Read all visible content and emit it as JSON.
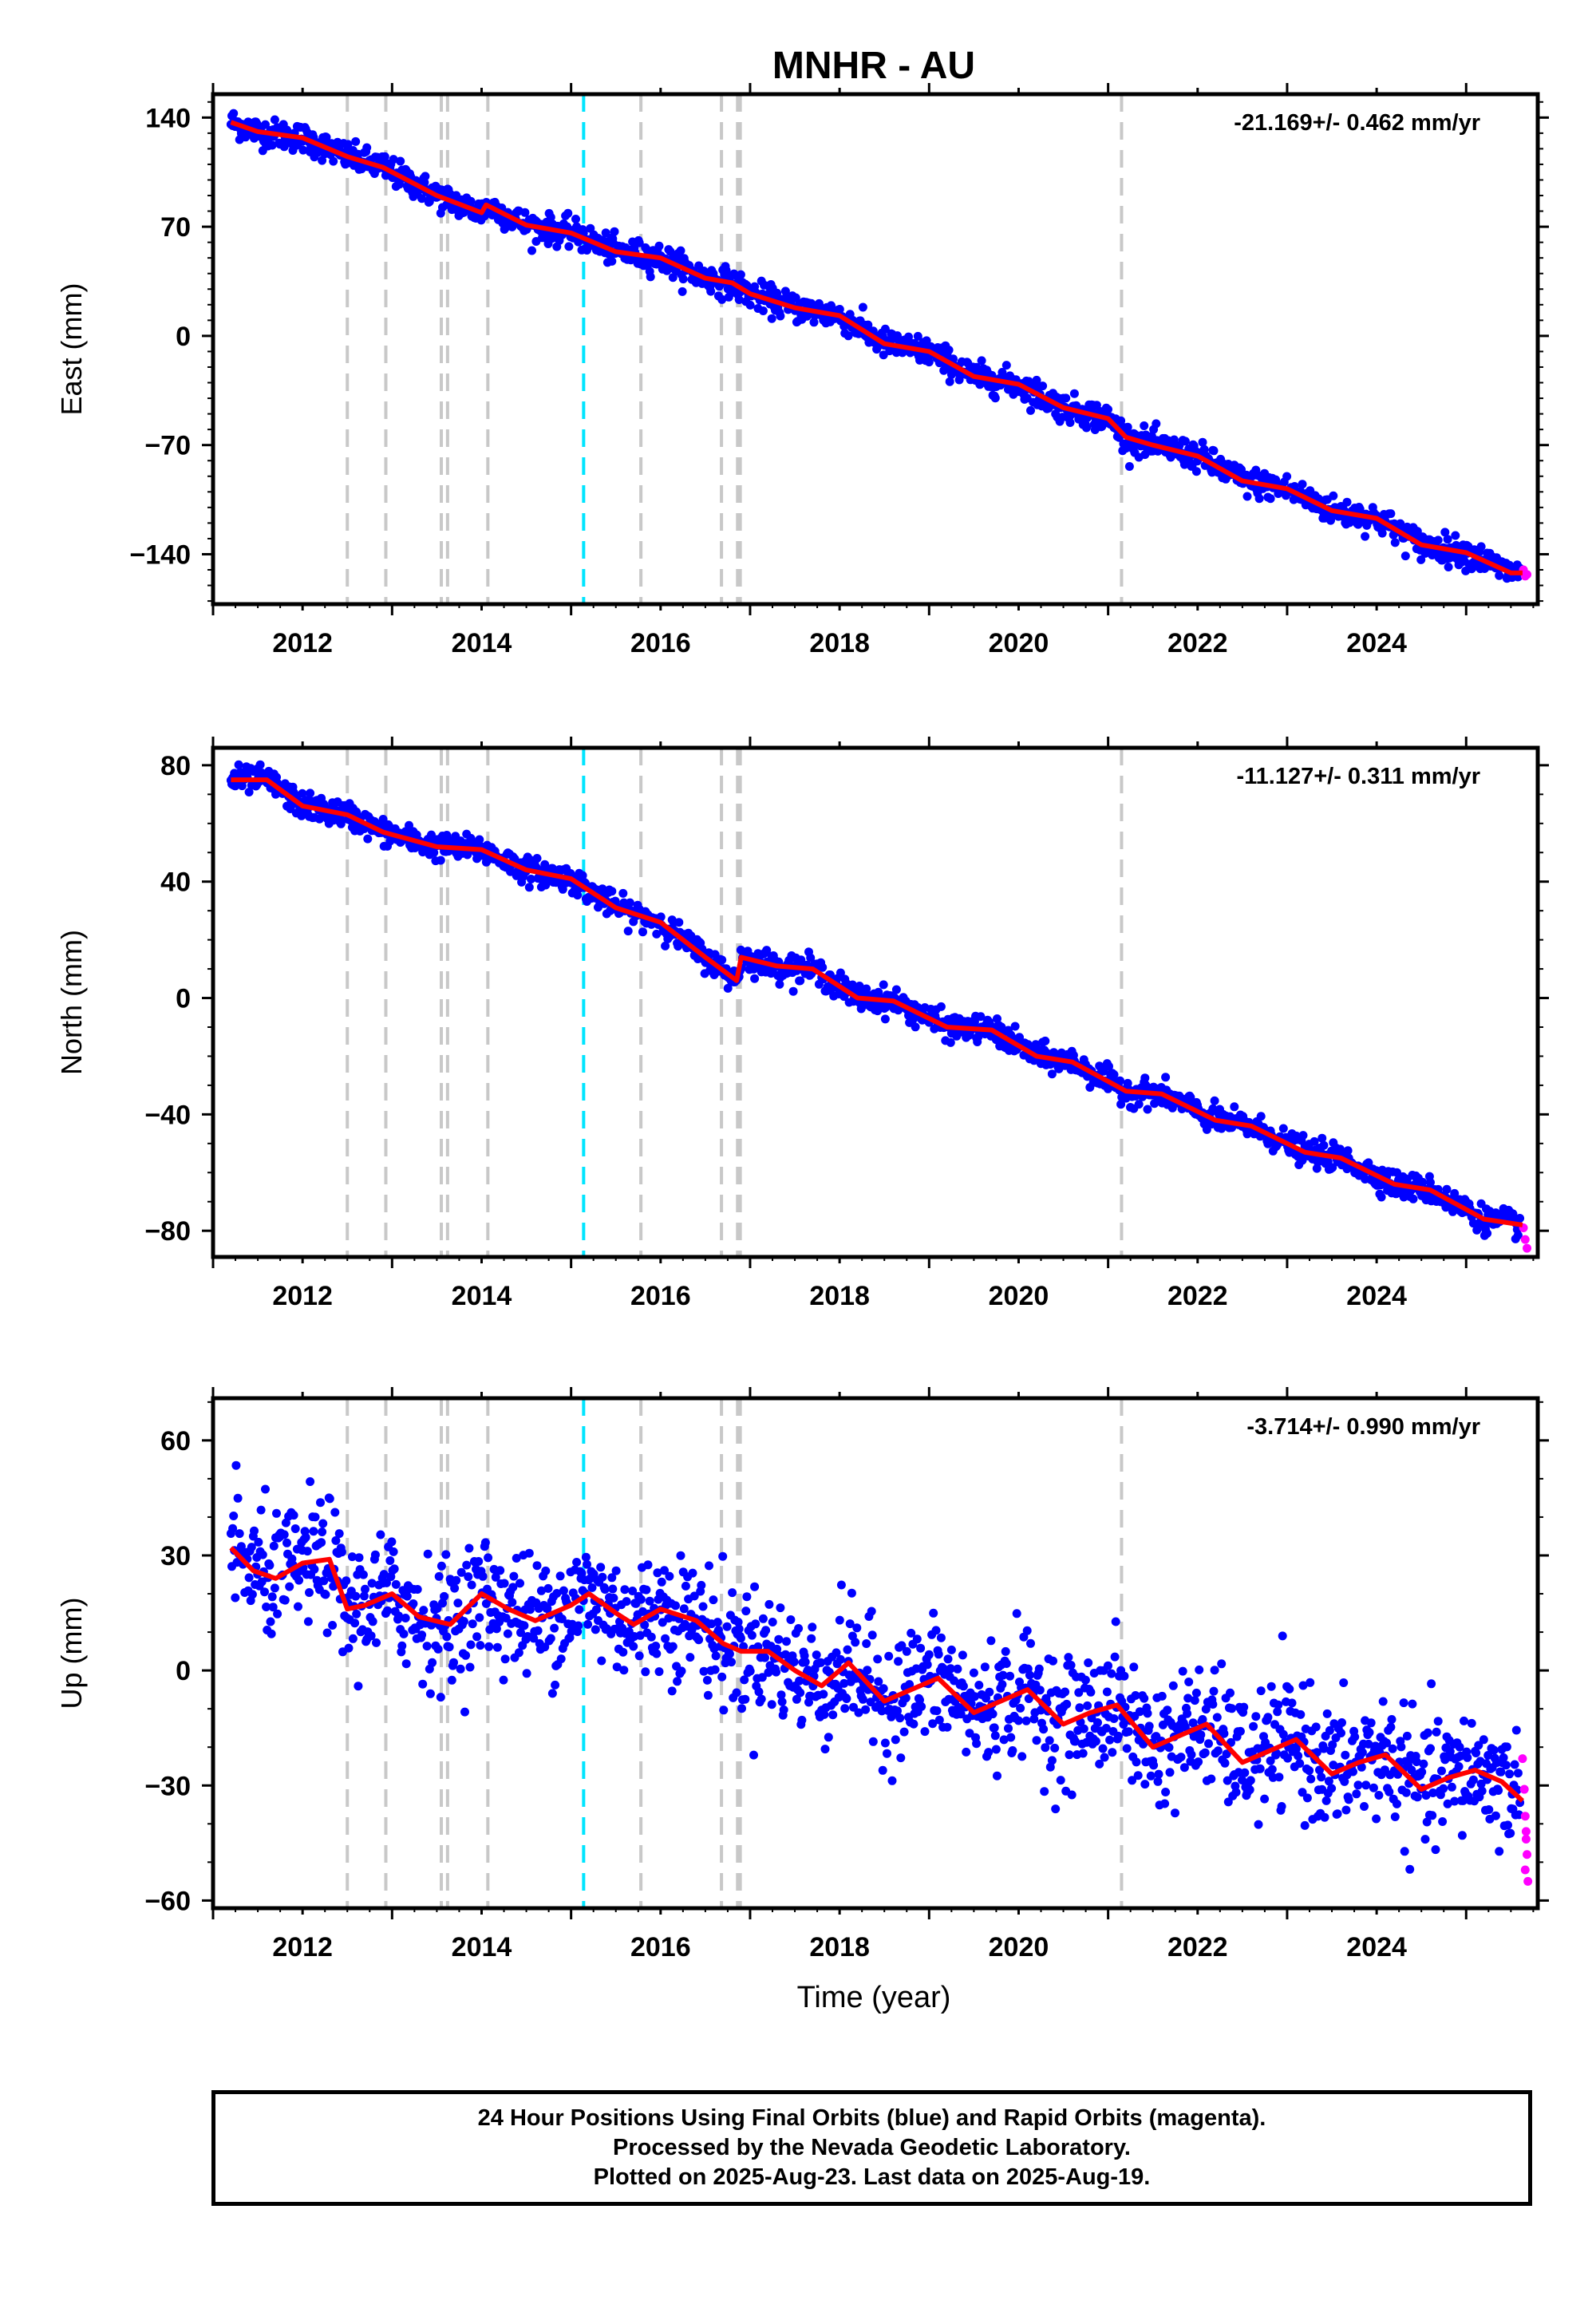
{
  "title": "MNHR - AU",
  "xlabel": "Time (year)",
  "colors": {
    "final_orbits": "#0000ff",
    "rapid_orbits": "#ff00ff",
    "model": "#ff0000",
    "equipment_change": "#c8c8c8",
    "earthquake_marker": "#00e5ff"
  },
  "chart_data": [
    {
      "type": "scatter",
      "ylabel": "East (mm)",
      "rate": "-21.169+/- 0.462 mm/yr",
      "xlim": [
        2011.0,
        2025.8
      ],
      "ylim": [
        -172,
        155
      ],
      "xticks": [
        2012,
        2014,
        2016,
        2018,
        2020,
        2022,
        2024
      ],
      "yticks": [
        140,
        70,
        0,
        -70,
        -140
      ],
      "grid": false,
      "series": [
        {
          "role": "model",
          "x": [
            2011.2,
            2011.5,
            2012.0,
            2012.5,
            2012.9,
            2013.5,
            2014.0,
            2014.05,
            2014.5,
            2015.0,
            2015.5,
            2016.0,
            2016.5,
            2016.8,
            2017.0,
            2017.5,
            2018.0,
            2018.5,
            2019.0,
            2019.5,
            2020.0,
            2020.5,
            2021.0,
            2021.2,
            2021.5,
            2022.0,
            2022.5,
            2023.0,
            2023.5,
            2024.0,
            2024.5,
            2025.0,
            2025.5,
            2025.63
          ],
          "y": [
            137,
            131,
            127,
            115,
            108,
            90,
            79,
            84,
            71,
            66,
            54,
            50,
            37,
            34,
            27,
            18,
            13,
            -5,
            -10,
            -26,
            -31,
            -46,
            -53,
            -65,
            -70,
            -77,
            -93,
            -98,
            -112,
            -117,
            -134,
            -139,
            -152,
            -152
          ]
        },
        {
          "role": "final_orbits",
          "trend": [
            [
              2011.2,
              137
            ],
            [
              2025.6,
              -152
            ]
          ],
          "scatter_sd": 4.5
        },
        {
          "role": "rapid_orbits",
          "x": [
            2025.64,
            2025.66,
            2025.68
          ],
          "y": [
            -150,
            -154,
            -153
          ]
        }
      ]
    },
    {
      "type": "scatter",
      "ylabel": "North (mm)",
      "rate": "-11.127+/- 0.311 mm/yr",
      "xlim": [
        2011.0,
        2025.8
      ],
      "ylim": [
        -89,
        86
      ],
      "xticks": [
        2012,
        2014,
        2016,
        2018,
        2020,
        2022,
        2024
      ],
      "yticks": [
        80,
        40,
        0,
        -40,
        -80
      ],
      "grid": false,
      "series": [
        {
          "role": "model",
          "x": [
            2011.2,
            2011.6,
            2012.0,
            2012.5,
            2012.9,
            2013.5,
            2014.0,
            2014.5,
            2015.0,
            2015.5,
            2016.0,
            2016.5,
            2016.85,
            2016.9,
            2017.3,
            2017.7,
            2018.2,
            2018.6,
            2019.2,
            2019.7,
            2020.2,
            2020.6,
            2021.2,
            2021.6,
            2022.2,
            2022.6,
            2023.2,
            2023.6,
            2024.2,
            2024.6,
            2025.2,
            2025.63
          ],
          "y": [
            75,
            75,
            66,
            63,
            57,
            52,
            51,
            44,
            41,
            31,
            26,
            14,
            6,
            14,
            11,
            10,
            0,
            -1,
            -10,
            -11,
            -20,
            -22,
            -32,
            -33,
            -42,
            -44,
            -53,
            -55,
            -64,
            -66,
            -76,
            -78
          ]
        },
        {
          "role": "final_orbits",
          "trend": [
            [
              2011.2,
              77
            ],
            [
              2025.6,
              -78
            ]
          ],
          "scatter_sd": 2.2
        },
        {
          "role": "rapid_orbits",
          "x": [
            2025.64,
            2025.66,
            2025.68
          ],
          "y": [
            -79,
            -83,
            -86
          ]
        }
      ]
    },
    {
      "type": "scatter",
      "ylabel": "Up (mm)",
      "rate": "-3.714+/- 0.990 mm/yr",
      "xlim": [
        2011.0,
        2025.8
      ],
      "ylim": [
        -62,
        71
      ],
      "xticks": [
        2012,
        2014,
        2016,
        2018,
        2020,
        2022,
        2024
      ],
      "yticks": [
        60,
        30,
        0,
        -30,
        -60
      ],
      "grid": false,
      "series": [
        {
          "role": "model",
          "x": [
            2011.2,
            2011.45,
            2011.7,
            2012.0,
            2012.3,
            2012.5,
            2012.7,
            2013.0,
            2013.3,
            2013.65,
            2014.0,
            2014.3,
            2014.6,
            2015.0,
            2015.2,
            2015.5,
            2015.7,
            2016.0,
            2016.4,
            2016.7,
            2016.9,
            2017.2,
            2017.5,
            2017.8,
            2018.1,
            2018.5,
            2018.8,
            2019.1,
            2019.5,
            2019.8,
            2020.1,
            2020.5,
            2020.8,
            2021.1,
            2021.5,
            2021.8,
            2022.1,
            2022.5,
            2022.8,
            2023.1,
            2023.5,
            2023.8,
            2024.1,
            2024.5,
            2024.8,
            2025.1,
            2025.4,
            2025.63
          ],
          "y": [
            32,
            26,
            24,
            28,
            29,
            16,
            17,
            20,
            14,
            12,
            20,
            16,
            13,
            17,
            20,
            15,
            12,
            16,
            13,
            7,
            5,
            5,
            0,
            -4,
            2,
            -8,
            -5,
            -2,
            -11,
            -8,
            -5,
            -14,
            -11,
            -9,
            -20,
            -17,
            -14,
            -24,
            -21,
            -18,
            -27,
            -24,
            -22,
            -31,
            -28,
            -26,
            -29,
            -34
          ]
        },
        {
          "role": "final_orbits",
          "trend": [
            [
              2011.2,
              29
            ],
            [
              2025.6,
              -29
            ]
          ],
          "scatter_sd": 8.0
        },
        {
          "role": "rapid_orbits",
          "x": [
            2025.63,
            2025.65,
            2025.66,
            2025.67,
            2025.68,
            2025.69,
            2025.67,
            2025.66
          ],
          "y": [
            -23,
            -31,
            -38,
            -44,
            -48,
            -55,
            -42,
            -52
          ]
        }
      ]
    }
  ],
  "equipment_changes": [
    2012.5,
    2012.93,
    2013.55,
    2013.62,
    2014.07,
    2015.78,
    2016.68,
    2016.86,
    2016.89,
    2021.15
  ],
  "earthquake_markers": [
    2015.14
  ],
  "footer": {
    "line1": "24 Hour Positions Using Final Orbits (blue) and Rapid Orbits (magenta).",
    "line2": "Processed by the Nevada Geodetic Laboratory.",
    "line3": "Plotted on 2025-Aug-23. Last data on 2025-Aug-19."
  }
}
